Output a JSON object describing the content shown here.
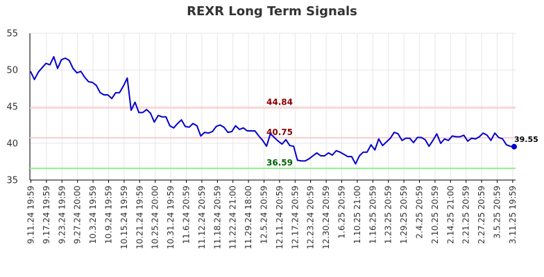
{
  "chart_data": {
    "type": "line",
    "title": "REXR Long Term Signals",
    "xlabel": "",
    "ylabel": "",
    "ylim": [
      35,
      55
    ],
    "yticks": [
      35,
      40,
      45,
      50,
      55
    ],
    "grid": true,
    "x_tick_labels": [
      "9.11.24 19:59",
      "9.17.24 19:59",
      "9.23.24 19:59",
      "9.27.24 20:00",
      "10.3.24 19:59",
      "10.9.24 19:59",
      "10.15.24 19:59",
      "10.21.24 19:59",
      "10.25.24 20:00",
      "10.31.24 19:59",
      "11.6.24 20:59",
      "11.12.24 20:59",
      "11.18.24 20:59",
      "11.22.24 21:00",
      "11.29.24 18:00",
      "12.5.24 20:59",
      "12.11.24 20:59",
      "12.17.24 20:59",
      "12.23.24 20:59",
      "12.30.24 20:59",
      "1.6.25 20:59",
      "1.10.25 21:00",
      "1.16.25 20:59",
      "1.23.25 20:59",
      "1.29.25 20:59",
      "2.4.25 20:59",
      "2.10.25 20:59",
      "2.14.25 21:00",
      "2.21.25 20:59",
      "2.27.25 20:59",
      "3.5.25 20:59",
      "3.11.25 19:59"
    ],
    "series": [
      {
        "color": "#0000cc",
        "values": [
          49.8,
          48.7,
          49.7,
          50.3,
          50.9,
          50.7,
          51.8,
          50.2,
          51.4,
          51.6,
          51.3,
          50.2,
          49.6,
          49.8,
          49.0,
          48.4,
          48.3,
          47.9,
          46.9,
          46.6,
          46.6,
          46.1,
          46.9,
          46.9,
          47.8,
          48.9,
          44.5,
          45.6,
          44.2,
          44.2,
          44.6,
          44.1,
          42.9,
          43.8,
          43.6,
          43.6,
          42.4,
          42.1,
          42.7,
          43.2,
          42.3,
          42.2,
          42.7,
          42.4,
          41.0,
          41.5,
          41.4,
          41.6,
          42.3,
          42.5,
          42.2,
          41.5,
          41.6,
          42.4,
          41.9,
          42.1,
          41.7,
          41.7,
          41.7,
          41.0,
          40.4,
          39.6,
          41.3,
          40.8,
          40.3,
          39.9,
          40.5,
          39.7,
          39.6,
          37.7,
          37.6,
          37.6,
          37.9,
          38.3,
          38.7,
          38.3,
          38.3,
          38.7,
          38.4,
          39.0,
          38.8,
          38.5,
          38.2,
          38.2,
          37.2,
          38.3,
          38.8,
          38.8,
          39.8,
          39.1,
          40.6,
          39.7,
          40.2,
          40.7,
          41.5,
          41.3,
          40.4,
          40.7,
          40.7,
          40.1,
          40.8,
          40.8,
          40.5,
          39.6,
          40.4,
          41.3,
          40.0,
          40.6,
          40.4,
          41.0,
          40.9,
          40.9,
          41.1,
          40.3,
          40.7,
          40.6,
          40.9,
          41.4,
          41.1,
          40.4,
          41.4,
          40.8,
          40.6,
          39.8,
          39.6,
          39.55
        ]
      }
    ],
    "reference_lines": [
      {
        "value": 44.84,
        "label": "44.84",
        "line_color": "#ffcccc",
        "label_color": "#8b0000"
      },
      {
        "value": 40.75,
        "label": "40.75",
        "line_color": "#ffcccc",
        "label_color": "#8b0000"
      },
      {
        "value": 36.59,
        "label": "36.59",
        "line_color": "#90ee90",
        "label_color": "#006400"
      }
    ],
    "last_point": {
      "value": 39.55,
      "label": "39.55"
    }
  }
}
